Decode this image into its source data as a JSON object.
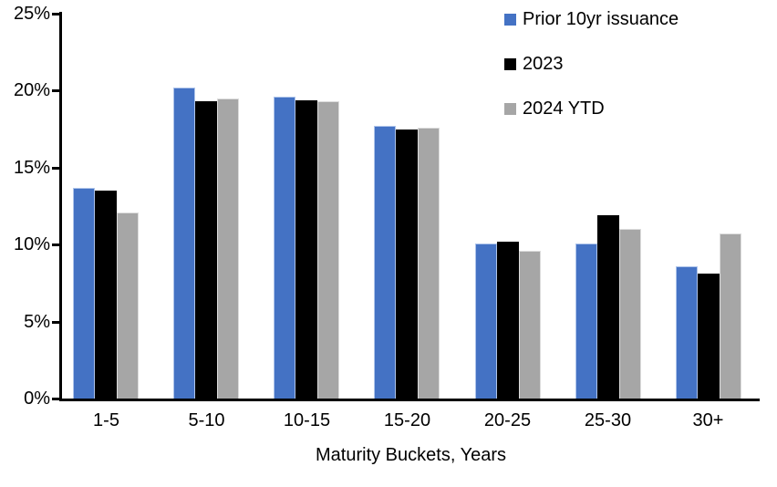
{
  "chart_data": {
    "type": "bar",
    "title": "",
    "xlabel": "Maturity Buckets, Years",
    "ylabel": "",
    "ylim": [
      0,
      25
    ],
    "grid": false,
    "legend_position": "top-right",
    "categories": [
      "1-5",
      "5-10",
      "10-15",
      "15-20",
      "20-25",
      "25-30",
      "30+"
    ],
    "ytick_values": [
      0,
      5,
      10,
      15,
      20,
      25
    ],
    "ytick_labels": [
      "0%",
      "5%",
      "10%",
      "15%",
      "20%",
      "25%"
    ],
    "series": [
      {
        "name": "Prior 10yr issuance",
        "color": "#4472C4",
        "border_color": "#aec4ea",
        "values": [
          13.7,
          20.2,
          19.6,
          17.7,
          10.1,
          10.1,
          8.6
        ]
      },
      {
        "name": "2023",
        "color": "#000000",
        "border_color": "#000000",
        "values": [
          13.5,
          19.3,
          19.4,
          17.5,
          10.2,
          11.9,
          8.1
        ]
      },
      {
        "name": "2024 YTD",
        "color": "#A6A6A6",
        "border_color": "#dcdcdc",
        "values": [
          12.1,
          19.5,
          19.3,
          17.6,
          9.6,
          11.0,
          10.7
        ]
      }
    ],
    "axis_color": "#000000",
    "background_color": "#ffffff"
  }
}
